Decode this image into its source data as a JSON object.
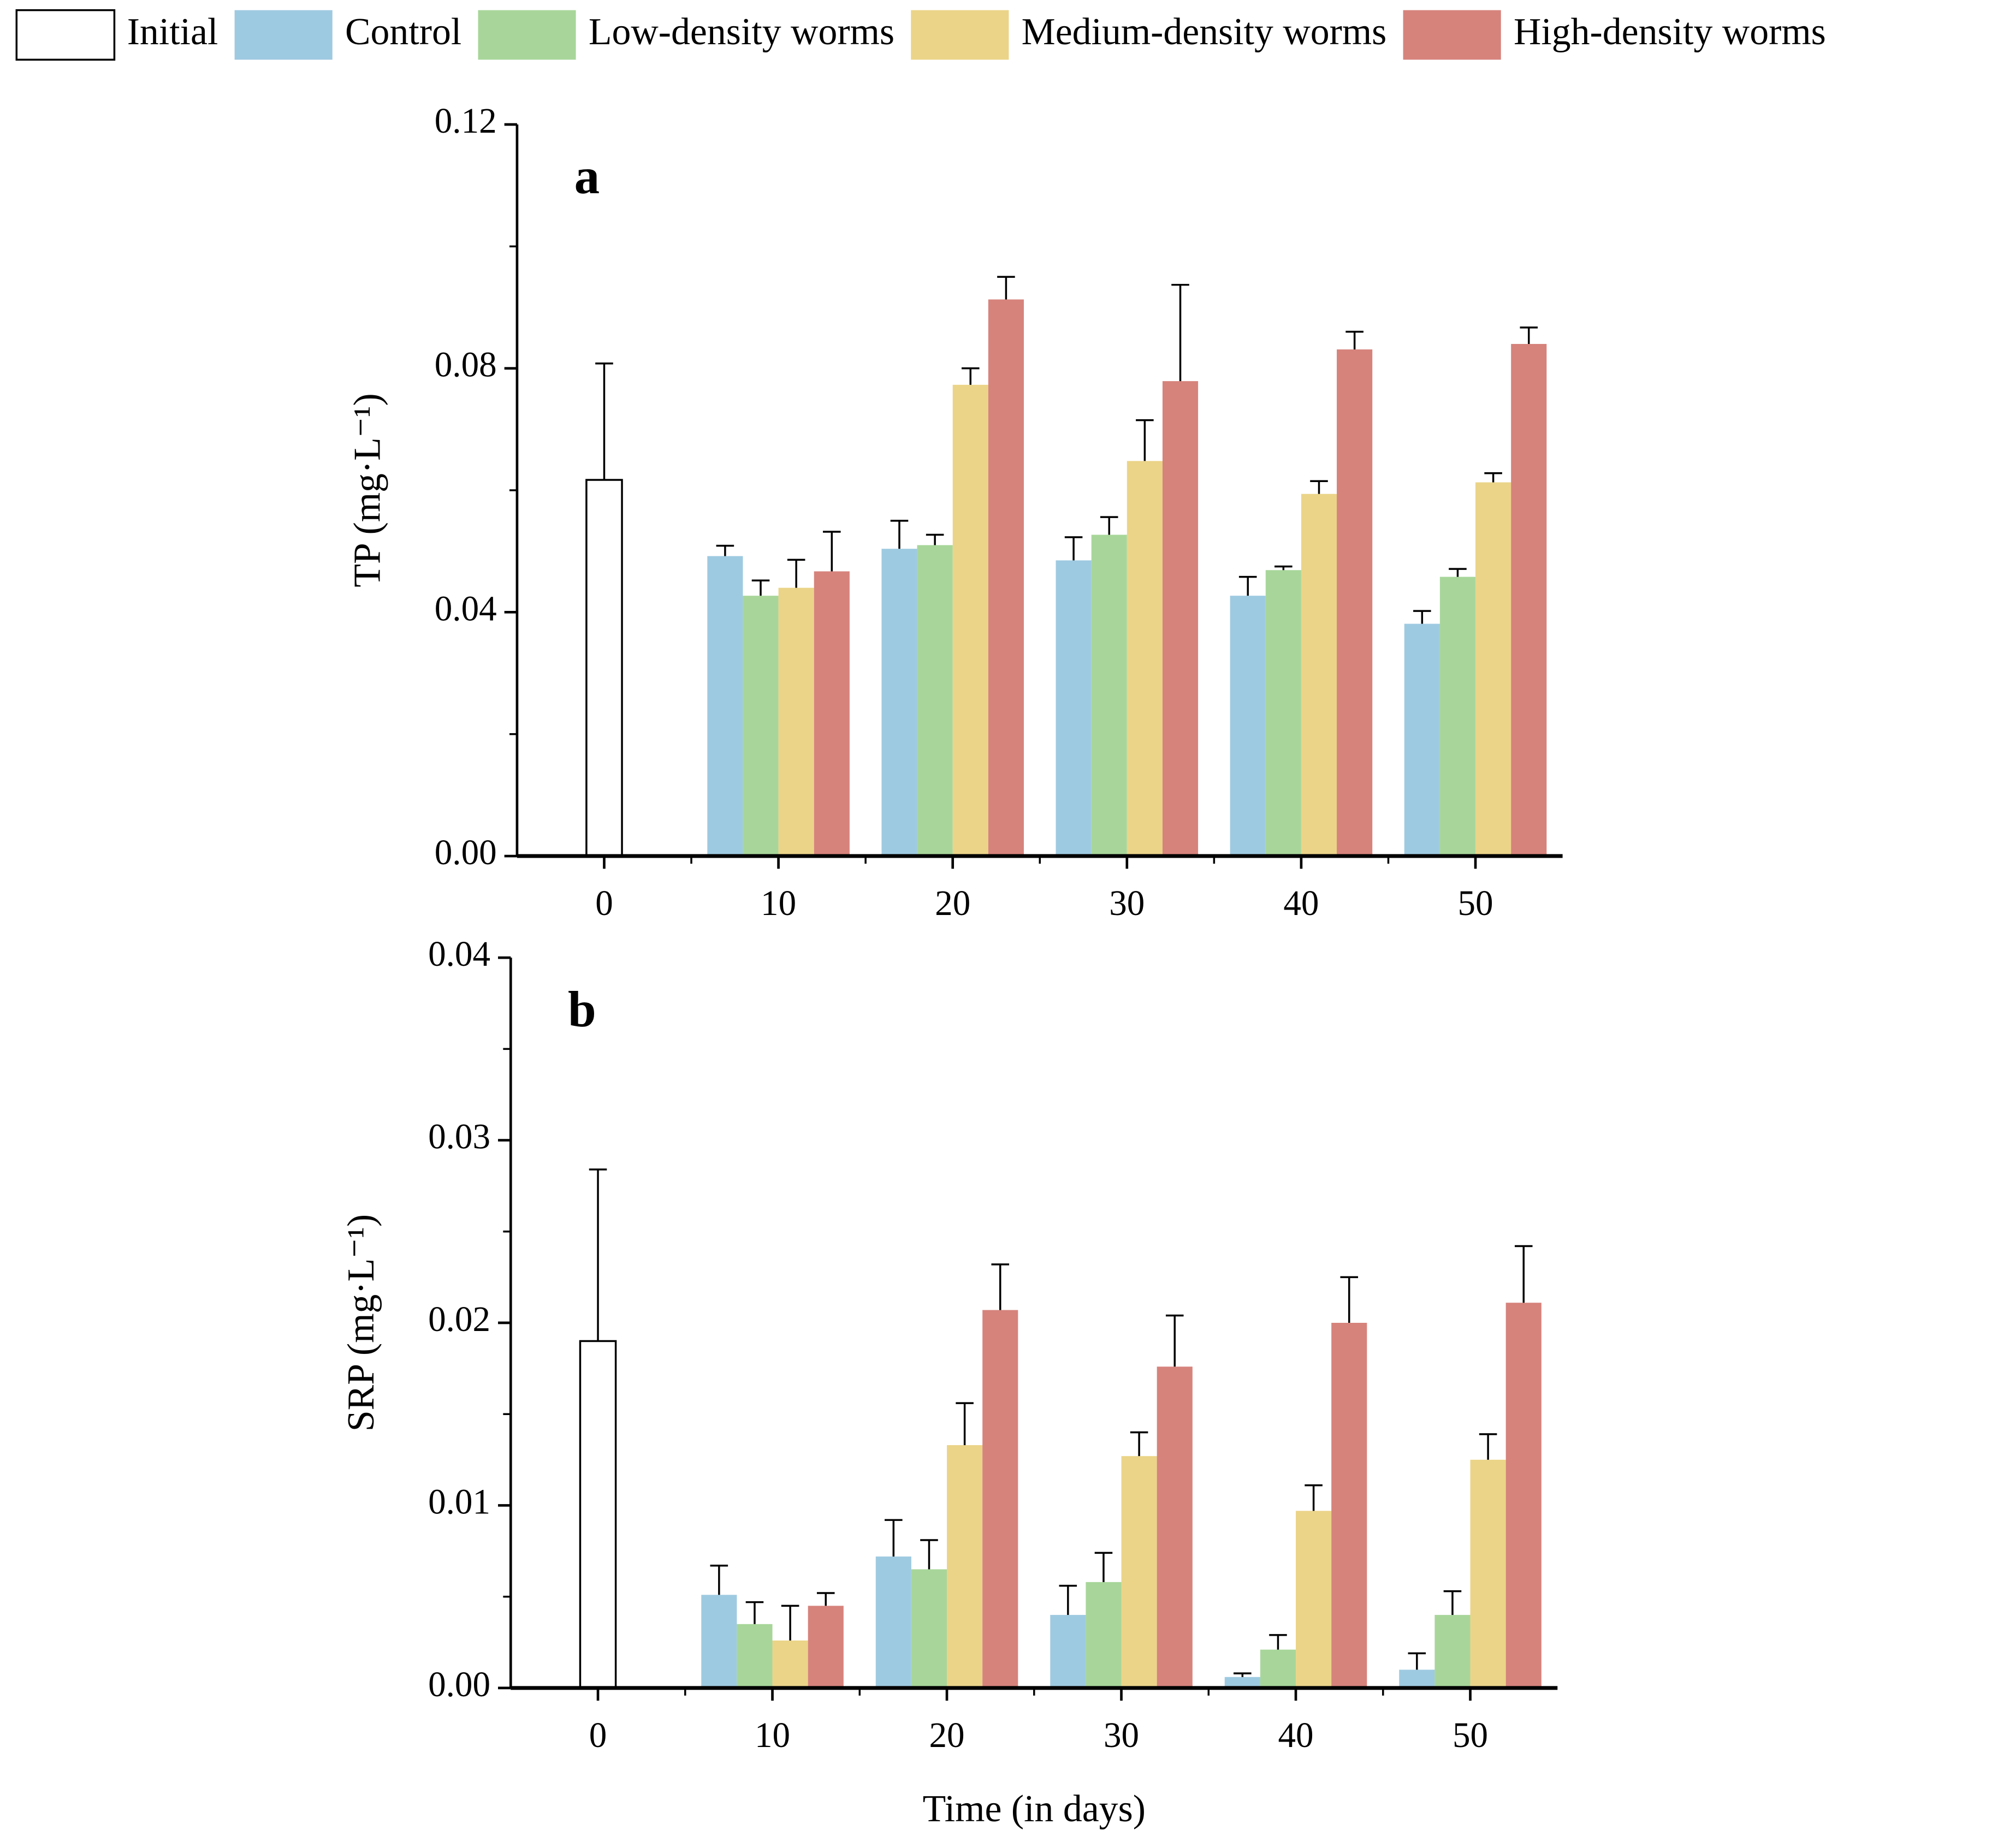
{
  "chart_data": [
    {
      "type": "bar",
      "panel_label": "a",
      "y_label": "TP (mg·L⁻¹)",
      "x": [
        0,
        10,
        20,
        30,
        40,
        50
      ],
      "xlim": [
        -5,
        55
      ],
      "xticks": [
        0,
        10,
        20,
        30,
        40,
        50
      ],
      "xticks_minor": [
        5,
        15,
        25,
        35,
        45
      ],
      "ylim": [
        0,
        0.12
      ],
      "yticks": [
        {
          "value": 0,
          "label": "0.00"
        },
        {
          "value": 0.04,
          "label": "0.04"
        },
        {
          "value": 0.08,
          "label": "0.08"
        },
        {
          "value": 0.12,
          "label": "0.12"
        }
      ],
      "yticks_minor": [
        0.02,
        0.06,
        0.1
      ],
      "series": [
        {
          "name": "Initial",
          "color": "#ffffff",
          "edgecolor": "#000000",
          "values": [
            0.0617,
            null,
            null,
            null,
            null,
            null
          ],
          "errors": [
            0.0191,
            null,
            null,
            null,
            null,
            null
          ]
        },
        {
          "name": "Control",
          "color": "#9ecae1",
          "values": [
            null,
            0.0492,
            0.0504,
            0.0485,
            0.0427,
            0.0381
          ],
          "errors": [
            null,
            0.0017,
            0.0046,
            0.0038,
            0.0031,
            0.0021
          ]
        },
        {
          "name": "Low-density worms",
          "color": "#a8d69a",
          "values": [
            null,
            0.0427,
            0.051,
            0.0527,
            0.0469,
            0.0458
          ],
          "errors": [
            null,
            0.0025,
            0.0017,
            0.0029,
            0.0006,
            0.0013
          ]
        },
        {
          "name": "Medium-density worms",
          "color": "#ebd488",
          "values": [
            null,
            0.044,
            0.0773,
            0.0648,
            0.0594,
            0.0613
          ],
          "errors": [
            null,
            0.0046,
            0.0027,
            0.0067,
            0.0021,
            0.0015
          ]
        },
        {
          "name": "High-density worms",
          "color": "#d6837c",
          "values": [
            null,
            0.0467,
            0.0913,
            0.0779,
            0.0831,
            0.084
          ],
          "errors": [
            null,
            0.0065,
            0.0037,
            0.0158,
            0.0029,
            0.0027
          ]
        }
      ]
    },
    {
      "type": "bar",
      "panel_label": "b",
      "y_label": "SRP (mg·L⁻¹)",
      "x_label": "Time (in days)",
      "x": [
        0,
        10,
        20,
        30,
        40,
        50
      ],
      "xlim": [
        -5,
        55
      ],
      "xticks": [
        0,
        10,
        20,
        30,
        40,
        50
      ],
      "xticks_minor": [
        5,
        15,
        25,
        35,
        45
      ],
      "ylim": [
        0,
        0.04
      ],
      "yticks": [
        {
          "value": 0,
          "label": "0.00"
        },
        {
          "value": 0.01,
          "label": "0.01"
        },
        {
          "value": 0.02,
          "label": "0.02"
        },
        {
          "value": 0.03,
          "label": "0.03"
        },
        {
          "value": 0.04,
          "label": "0.04"
        }
      ],
      "yticks_minor": [
        0.005,
        0.015,
        0.025,
        0.035
      ],
      "series": [
        {
          "color": "#ffffff",
          "edgecolor": "#000000",
          "values": [
            0.019,
            null,
            null,
            null,
            null,
            null
          ],
          "errors": [
            0.0094,
            null,
            null,
            null,
            null,
            null
          ]
        },
        {
          "color": "#9ecae1",
          "values": [
            null,
            0.0051,
            0.0072,
            0.004,
            0.0006,
            0.001
          ],
          "errors": [
            null,
            0.0016,
            0.002,
            0.0016,
            0.0002,
            0.0009
          ]
        },
        {
          "color": "#a8d69a",
          "values": [
            null,
            0.0035,
            0.0065,
            0.0058,
            0.0021,
            0.004
          ],
          "errors": [
            null,
            0.0012,
            0.0016,
            0.0016,
            0.0008,
            0.0013
          ]
        },
        {
          "color": "#ebd488",
          "values": [
            null,
            0.0026,
            0.0133,
            0.0127,
            0.0097,
            0.0125
          ],
          "errors": [
            null,
            0.0019,
            0.0023,
            0.0013,
            0.0014,
            0.0014
          ]
        },
        {
          "color": "#d6837c",
          "values": [
            null,
            0.0045,
            0.0207,
            0.0176,
            0.02,
            0.0211
          ],
          "errors": [
            null,
            0.0007,
            0.0025,
            0.0028,
            0.0025,
            0.0031
          ]
        }
      ]
    }
  ]
}
